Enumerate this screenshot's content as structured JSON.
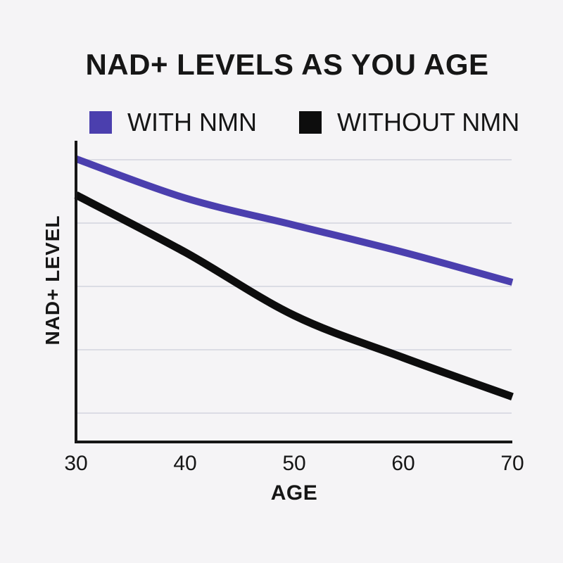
{
  "page": {
    "title": "NAD+ LEVELS AS YOU AGE",
    "background_color": "#f5f4f6",
    "text_color": "#161616"
  },
  "legend": {
    "items": [
      {
        "label": "WITH NMN",
        "swatch_color": "#4b3fae",
        "swatch_icon": "square-swatch"
      },
      {
        "label": "WITHOUT NMN",
        "swatch_color": "#0d0d0d",
        "swatch_icon": "square-swatch"
      }
    ]
  },
  "chart_data": {
    "type": "line",
    "title": "NAD+ LEVELS AS YOU AGE",
    "xlabel": "AGE",
    "ylabel": "NAD+ LEVEL",
    "x": [
      30,
      40,
      50,
      60,
      70
    ],
    "x_tick_labels": [
      "30",
      "40",
      "50",
      "60",
      "70"
    ],
    "y_tick_labels": [],
    "ylim": [
      0,
      100
    ],
    "xlim": [
      30,
      70
    ],
    "grid": "horizontal-only",
    "gridline_color": "#dbdce4",
    "axis_color": "#161616",
    "legend_position": "top",
    "series": [
      {
        "name": "WITH NMN",
        "color": "#4b3fae",
        "stroke_width": 10,
        "values": [
          94,
          81,
          72,
          63,
          53
        ]
      },
      {
        "name": "WITHOUT NMN",
        "color": "#0d0d0d",
        "stroke_width": 11,
        "values": [
          82,
          63,
          42,
          28,
          15
        ]
      }
    ]
  }
}
